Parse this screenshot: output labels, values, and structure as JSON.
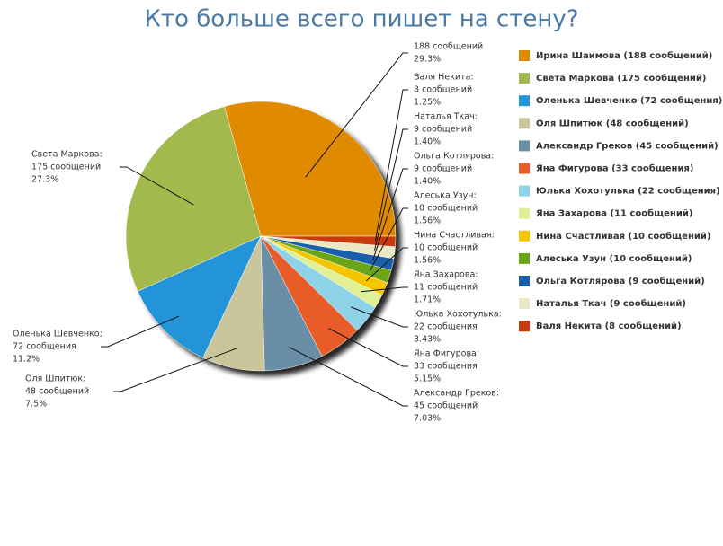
{
  "chart_data": {
    "type": "pie",
    "title": "Кто больше всего пишет на стену?",
    "categories": [
      null,
      "Света Маркова:",
      "Оленька Шевченко:",
      "Оля Шпитюк:",
      "Александр Греков:",
      "Яна Фигурова:",
      "Юлька Хохотулька:",
      "Яна Захарова:",
      "Нина Счастливая:",
      "Алеська Узун:",
      "Ольга Котлярова:",
      "Наталья Ткач:",
      "Валя Некита:"
    ],
    "count_labels": [
      "188 сообщений",
      "175 сообщений",
      "72 сообщения",
      "48 сообщений",
      "45 сообщений",
      "33 сообщения",
      "22 сообщения",
      "11 сообщений",
      "10 сообщений",
      "10 сообщений",
      "9 сообщений",
      "9 сообщений",
      "8 сообщений"
    ],
    "values": [
      29.3,
      27.3,
      11.2,
      7.5,
      7.03,
      5.15,
      3.43,
      1.71,
      1.56,
      1.56,
      1.4,
      1.4,
      1.25
    ],
    "value_labels": [
      "29.3%",
      "27.3%",
      "11.2%",
      "7.5%",
      "7.03%",
      "5.15%",
      "3.43%",
      "1.71%",
      "1.56%",
      "1.56%",
      "1.40%",
      "1.40%",
      "1.25%"
    ],
    "legend": [
      "Ирина Шаимова (188 сообщений)",
      "Света Маркова (175 сообщений)",
      "Оленька Шевченко (72 сообщения)",
      "Оля Шпитюк (48 сообщений)",
      "Александр Греков (45 сообщений)",
      "Яна Фигурова (33 сообщения)",
      "Юлька Хохотулька (22 сообщения)",
      "Яна Захарова (11 сообщений)",
      "Нина Счастливая (10 сообщений)",
      "Алеська Узун (10 сообщений)",
      "Ольга Котлярова (9 сообщений)",
      "Наталья Ткач (9 сообщений)",
      "Валя Некита (8 сообщений)"
    ],
    "colors": [
      "#e08a00",
      "#a3b94b",
      "#2494d8",
      "#cbc59c",
      "#6a8ea6",
      "#e85c2a",
      "#8ed2e8",
      "#e0f095",
      "#f3c600",
      "#6aa516",
      "#1a5fad",
      "#ece8c4",
      "#c83a0c"
    ]
  }
}
